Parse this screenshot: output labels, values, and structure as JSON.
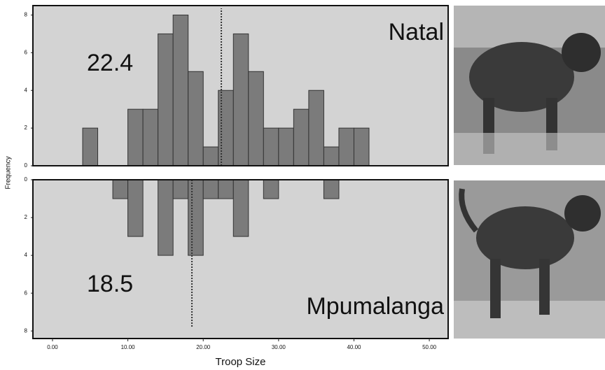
{
  "chart_data": [
    {
      "type": "histogram",
      "label": "Natal",
      "mean": 22.4,
      "ylabel": "Frequency",
      "bins": [
        4,
        6,
        8,
        10,
        12,
        14,
        16,
        18,
        20,
        22,
        24,
        26,
        28,
        30,
        32,
        34,
        36,
        38,
        40,
        42
      ],
      "values": [
        2,
        0,
        0,
        3,
        3,
        7,
        8,
        5,
        1,
        4,
        7,
        5,
        2,
        2,
        3,
        4,
        1,
        2,
        2
      ],
      "color": "#7b7b7b",
      "background": "#d3d3d3",
      "xlim": [
        -2.6,
        52.5
      ],
      "ylim": [
        0,
        8.5
      ],
      "yticks": [
        0,
        2,
        4,
        6,
        8
      ]
    },
    {
      "type": "histogram",
      "label": "Mpumalanga",
      "mean": 18.5,
      "xlabel": "Troop Size",
      "bins": [
        8,
        10,
        12,
        14,
        16,
        18,
        20,
        22,
        24,
        26,
        28,
        30,
        32,
        34,
        36,
        38
      ],
      "values": [
        1,
        3,
        0,
        4,
        1,
        4,
        1,
        1,
        3,
        0,
        1,
        0,
        0,
        0,
        1
      ],
      "color": "#7b7b7b",
      "background": "#d3d3d3",
      "inverted": true,
      "xlim": [
        -2.6,
        52.5
      ],
      "ylim": [
        0,
        8.4
      ],
      "yticks": [
        0,
        2,
        4,
        6,
        8
      ],
      "xticks": [
        {
          "value": 0,
          "label": "0.00"
        },
        {
          "value": 10,
          "label": "10.00"
        },
        {
          "value": 20,
          "label": "20.00"
        },
        {
          "value": 30,
          "label": "30.00"
        },
        {
          "value": 40,
          "label": "40.00"
        },
        {
          "value": 50,
          "label": "50.00"
        }
      ]
    }
  ]
}
